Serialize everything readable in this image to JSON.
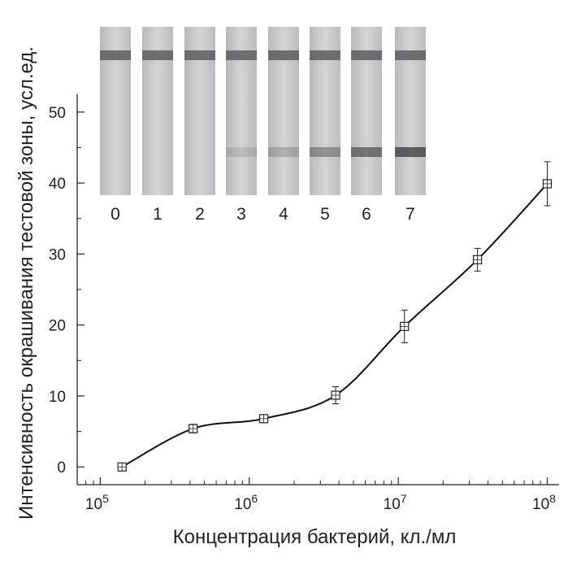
{
  "chart_data": {
    "type": "scatter",
    "xlabel": "Концентрация бактерий, кл./мл",
    "ylabel": "Интенсивность окрашивания тестовой зоны, усл.ед.",
    "x_scale": "log",
    "xlim": [
      70000,
      120000000
    ],
    "ylim": [
      -2.5,
      52.5
    ],
    "x_ticks": [
      {
        "value": 100000,
        "base": "10",
        "exp": "5"
      },
      {
        "value": 1000000,
        "base": "10",
        "exp": "6"
      },
      {
        "value": 10000000,
        "base": "10",
        "exp": "7"
      },
      {
        "value": 100000000,
        "base": "10",
        "exp": "8"
      }
    ],
    "y_ticks": [
      0,
      10,
      20,
      30,
      40,
      50
    ],
    "grid": false,
    "marker": "square-with-cross",
    "series": [
      {
        "x": [
          140000,
          420000,
          1250000,
          3800000,
          11000000,
          34000000,
          100000000
        ],
        "y": [
          0,
          5.4,
          6.8,
          10.1,
          19.8,
          29.2,
          39.9
        ],
        "error": [
          0.4,
          0.6,
          0.5,
          1.2,
          2.3,
          1.6,
          3.1
        ]
      }
    ],
    "inset": {
      "description_labels": [
        "0",
        "1",
        "2",
        "3",
        "4",
        "5",
        "6",
        "7"
      ],
      "test_line_intensity": [
        0,
        0,
        0,
        0.05,
        0.2,
        0.45,
        0.75,
        0.95
      ]
    }
  }
}
